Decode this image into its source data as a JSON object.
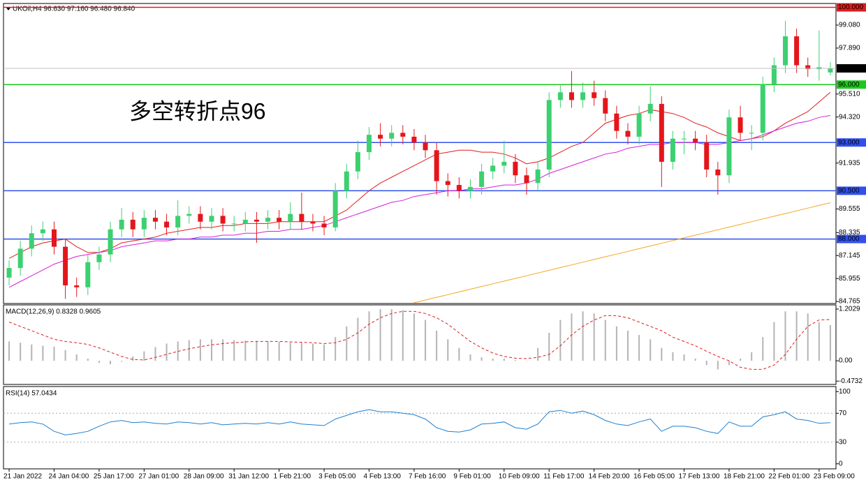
{
  "chart_data": [
    {
      "type": "candlestick",
      "title": "UKOil,H4  96.630 97.160 96.480 96.840",
      "annotation": "多空转折点96",
      "annotation_color": "#e8101a",
      "up_color": "#3cd070",
      "down_color": "#e4161b",
      "categories": [
        "21 Jan 2022",
        null,
        null,
        null,
        "24 Jan 04:00",
        null,
        null,
        null,
        "25 Jan 17:00",
        null,
        null,
        null,
        "27 Jan 01:00",
        null,
        null,
        null,
        "28 Jan 09:00",
        null,
        null,
        null,
        "31 Jan 12:00",
        null,
        null,
        null,
        "1 Feb 21:00",
        null,
        null,
        null,
        "3 Feb 05:00",
        null,
        null,
        null,
        "4 Feb 13:00",
        null,
        null,
        null,
        "7 Feb 16:00",
        null,
        null,
        null,
        "9 Feb 01:00",
        null,
        null,
        null,
        "10 Feb 09:00",
        null,
        null,
        null,
        "11 Feb 17:00",
        null,
        null,
        null,
        "14 Feb 20:00",
        null,
        null,
        null,
        "16 Feb 05:00",
        null,
        null,
        null,
        "17 Feb 13:00",
        null,
        null,
        null,
        "18 Feb 21:00",
        null,
        null,
        null,
        "22 Feb 01:00",
        null,
        null,
        null,
        "23 Feb 09:00",
        null
      ],
      "open": [
        86.0,
        86.5,
        87.5,
        88.3,
        88.5,
        87.6,
        85.6,
        85.5,
        86.8,
        87.2,
        88.5,
        89.0,
        88.5,
        89.1,
        88.9,
        88.6,
        89.2,
        89.3,
        88.9,
        89.2,
        88.8,
        88.8,
        89.0,
        88.9,
        89.1,
        88.9,
        89.3,
        88.9,
        88.8,
        88.6,
        90.5,
        91.5,
        92.5,
        93.4,
        93.2,
        93.5,
        93.3,
        93.0,
        92.6,
        91.0,
        90.8,
        90.5,
        90.7,
        91.5,
        91.8,
        92.0,
        91.3,
        90.9,
        91.6,
        95.2,
        95.6,
        95.2,
        95.6,
        95.3,
        94.5,
        93.6,
        93.3,
        94.5,
        95.0,
        92.0,
        93.2,
        93.2,
        93.0,
        91.6,
        91.3,
        94.3,
        93.5,
        93.5,
        96.0,
        97.0,
        98.5,
        97.0,
        96.8,
        96.63
      ],
      "high": [
        86.9,
        87.9,
        88.7,
        88.9,
        88.9,
        88.0,
        86.0,
        87.2,
        87.6,
        88.9,
        89.6,
        89.4,
        89.5,
        89.5,
        89.3,
        90.0,
        89.7,
        89.7,
        89.6,
        89.6,
        89.2,
        89.4,
        89.4,
        89.5,
        89.5,
        89.9,
        90.4,
        89.3,
        89.2,
        90.9,
        91.9,
        93.1,
        93.8,
        94.0,
        93.9,
        93.9,
        93.7,
        93.4,
        93.0,
        91.4,
        91.2,
        91.1,
        91.9,
        92.2,
        93.1,
        92.4,
        91.7,
        92.0,
        95.6,
        96.0,
        96.7,
        96.1,
        96.2,
        95.7,
        94.9,
        94.0,
        94.9,
        95.9,
        95.4,
        93.6,
        93.6,
        93.6,
        93.4,
        92.0,
        94.7,
        94.9,
        93.9,
        96.4,
        97.4,
        99.3,
        98.9,
        97.4,
        98.8,
        97.16
      ],
      "low": [
        85.6,
        86.1,
        87.1,
        87.9,
        87.2,
        84.9,
        85.0,
        85.1,
        86.4,
        86.8,
        88.1,
        88.1,
        88.1,
        88.5,
        88.2,
        88.2,
        88.8,
        88.5,
        88.5,
        88.4,
        88.4,
        88.4,
        87.8,
        88.5,
        88.5,
        88.5,
        88.5,
        88.4,
        88.2,
        88.4,
        90.1,
        91.1,
        92.1,
        92.8,
        92.8,
        92.9,
        92.6,
        92.2,
        90.3,
        90.2,
        90.1,
        90.1,
        90.3,
        91.1,
        91.4,
        90.9,
        90.3,
        90.5,
        91.2,
        94.8,
        94.8,
        94.8,
        94.9,
        94.1,
        93.2,
        92.9,
        92.9,
        94.1,
        90.7,
        91.6,
        92.4,
        92.6,
        91.2,
        90.3,
        90.9,
        93.1,
        92.6,
        93.1,
        95.6,
        96.6,
        96.6,
        96.4,
        96.2,
        96.48
      ],
      "close": [
        86.5,
        87.5,
        88.3,
        88.5,
        87.6,
        85.6,
        85.5,
        86.8,
        87.2,
        88.5,
        89.0,
        88.5,
        89.1,
        88.9,
        88.6,
        89.2,
        89.3,
        88.9,
        89.2,
        88.8,
        88.8,
        89.0,
        88.9,
        89.1,
        88.9,
        89.3,
        88.9,
        88.8,
        88.6,
        90.5,
        91.5,
        92.5,
        93.4,
        93.2,
        93.5,
        93.3,
        93.0,
        92.6,
        91.0,
        90.8,
        90.5,
        90.7,
        91.5,
        91.8,
        92.0,
        91.3,
        90.9,
        91.6,
        95.2,
        95.6,
        95.2,
        95.6,
        95.3,
        94.5,
        93.6,
        93.3,
        94.5,
        95.0,
        92.0,
        93.2,
        93.2,
        93.0,
        91.6,
        91.3,
        94.3,
        93.5,
        93.5,
        96.0,
        97.0,
        98.5,
        97.0,
        96.8,
        96.9,
        96.84
      ],
      "series": [
        {
          "color": "#e01b1b",
          "values": [
            87.0,
            87.3,
            87.6,
            87.8,
            87.9,
            88.0,
            87.6,
            87.3,
            87.3,
            87.5,
            87.8,
            87.9,
            88.0,
            88.1,
            88.3,
            88.4,
            88.5,
            88.6,
            88.6,
            88.7,
            88.7,
            88.8,
            88.8,
            88.8,
            88.9,
            88.9,
            88.9,
            88.9,
            88.9,
            89.2,
            89.5,
            90.0,
            90.5,
            90.9,
            91.2,
            91.5,
            91.8,
            92.1,
            92.4,
            92.5,
            92.6,
            92.6,
            92.5,
            92.5,
            92.4,
            92.2,
            91.9,
            92.0,
            92.2,
            92.5,
            92.8,
            93.0,
            93.5,
            94.0,
            94.2,
            94.4,
            94.5,
            94.7,
            94.6,
            94.5,
            94.3,
            94.0,
            93.8,
            93.5,
            93.3,
            93.1,
            93.2,
            93.3,
            93.6,
            94.0,
            94.3,
            94.6,
            95.1,
            95.6
          ]
        },
        {
          "color": "#d81ed8",
          "values": [
            85.5,
            85.8,
            86.1,
            86.4,
            86.7,
            86.9,
            87.1,
            87.2,
            87.3,
            87.4,
            87.6,
            87.7,
            87.8,
            87.9,
            87.9,
            88.0,
            88.0,
            88.1,
            88.1,
            88.2,
            88.2,
            88.3,
            88.3,
            88.4,
            88.4,
            88.5,
            88.5,
            88.6,
            88.7,
            88.9,
            89.1,
            89.3,
            89.5,
            89.7,
            89.9,
            90.0,
            90.2,
            90.3,
            90.4,
            90.5,
            90.5,
            90.6,
            90.6,
            90.7,
            90.8,
            90.8,
            90.9,
            91.1,
            91.4,
            91.6,
            91.8,
            92.0,
            92.2,
            92.4,
            92.5,
            92.7,
            92.8,
            92.9,
            92.9,
            93.0,
            93.0,
            93.0,
            92.9,
            92.9,
            93.0,
            93.1,
            93.2,
            93.4,
            93.6,
            93.8,
            94.0,
            94.1,
            94.3,
            94.4
          ]
        },
        {
          "color": "#f5a623",
          "values": [
            null,
            null,
            null,
            null,
            null,
            null,
            null,
            null,
            null,
            null,
            null,
            null,
            null,
            null,
            null,
            null,
            null,
            null,
            null,
            null,
            null,
            null,
            null,
            null,
            null,
            null,
            null,
            null,
            null,
            null,
            null,
            null,
            null,
            null,
            null,
            null,
            84.7,
            84.84,
            84.98,
            85.12,
            85.26,
            85.4,
            85.54,
            85.68,
            85.82,
            85.96,
            86.1,
            86.24,
            86.38,
            86.52,
            86.66,
            86.8,
            86.94,
            87.08,
            87.22,
            87.36,
            87.5,
            87.64,
            87.78,
            87.92,
            88.06,
            88.2,
            88.34,
            88.48,
            88.62,
            88.76,
            88.9,
            89.04,
            89.18,
            89.32,
            89.46,
            89.6,
            89.74,
            89.88
          ]
        }
      ],
      "levels": [
        {
          "value": 100.0,
          "label": "100.000",
          "color": "#e01b1b"
        },
        {
          "value": 96.0,
          "label": "96.000",
          "color": "#1ec81e"
        },
        {
          "value": 93.0,
          "label": "93.000",
          "color": "#3050ee"
        },
        {
          "value": 90.5,
          "label": "90.500",
          "color": "#3050ee"
        },
        {
          "value": 88.0,
          "label": "88.000",
          "color": "#3050ee"
        }
      ],
      "last": {
        "value": 96.84,
        "label": "96.840",
        "color": "#c0c0c0"
      },
      "ylim": [
        84.66,
        100.2
      ],
      "yticks": [
        {
          "value": 99.08,
          "label": "99.080"
        },
        {
          "value": 97.89,
          "label": "97.890"
        },
        {
          "value": 95.51,
          "label": "95.510"
        },
        {
          "value": 94.32,
          "label": "94.320"
        },
        {
          "value": 91.935,
          "label": "91.935"
        },
        {
          "value": 89.555,
          "label": "89.555"
        },
        {
          "value": 88.335,
          "label": "88.335"
        },
        {
          "value": 87.145,
          "label": "87.145"
        },
        {
          "value": 85.955,
          "label": "85.955"
        },
        {
          "value": 84.765,
          "label": "84.765"
        }
      ]
    },
    {
      "type": "macd",
      "title": "MACD(12,26,9) 0.8328 0.9605",
      "histogram": {
        "color": "#b4b4b4",
        "values": [
          0.45,
          0.42,
          0.38,
          0.35,
          0.33,
          0.25,
          0.15,
          0.05,
          -0.05,
          -0.08,
          -0.02,
          0.1,
          0.22,
          0.32,
          0.4,
          0.45,
          0.48,
          0.5,
          0.5,
          0.5,
          0.48,
          0.47,
          0.46,
          0.45,
          0.44,
          0.42,
          0.42,
          0.4,
          0.38,
          0.55,
          0.8,
          1.0,
          1.15,
          1.2,
          1.2,
          1.18,
          1.1,
          0.95,
          0.7,
          0.5,
          0.3,
          0.15,
          0.08,
          0.05,
          0.05,
          0.02,
          0.0,
          0.3,
          0.65,
          0.95,
          1.1,
          1.15,
          1.1,
          0.95,
          0.8,
          0.7,
          0.6,
          0.5,
          0.3,
          0.2,
          0.15,
          0.05,
          -0.1,
          -0.2,
          -0.1,
          0.05,
          0.2,
          0.55,
          0.9,
          1.15,
          1.15,
          1.1,
          0.9,
          0.8328
        ]
      },
      "signal": {
        "color": "#e01b1b",
        "values": [
          0.9,
          0.8,
          0.7,
          0.6,
          0.5,
          0.45,
          0.42,
          0.38,
          0.3,
          0.2,
          0.1,
          0.03,
          0.02,
          0.08,
          0.15,
          0.22,
          0.28,
          0.33,
          0.37,
          0.4,
          0.42,
          0.44,
          0.45,
          0.45,
          0.45,
          0.44,
          0.43,
          0.42,
          0.4,
          0.42,
          0.5,
          0.65,
          0.85,
          1.0,
          1.1,
          1.15,
          1.15,
          1.1,
          1.0,
          0.85,
          0.65,
          0.45,
          0.3,
          0.18,
          0.1,
          0.06,
          0.05,
          0.08,
          0.15,
          0.35,
          0.6,
          0.8,
          0.95,
          1.05,
          1.05,
          1.0,
          0.9,
          0.8,
          0.7,
          0.55,
          0.45,
          0.35,
          0.22,
          0.1,
          0.0,
          -0.15,
          -0.2,
          -0.2,
          -0.1,
          0.15,
          0.5,
          0.8,
          0.95,
          0.9605
        ]
      },
      "ylim": [
        -0.55,
        1.3
      ],
      "yticks": [
        1.2029,
        {
          "value": 0,
          "label": "0.00"
        },
        -0.4732
      ]
    },
    {
      "type": "line",
      "title": "RSI(14) 57.0434",
      "color": "#1e7fd0",
      "values": [
        55,
        57,
        58,
        55,
        45,
        40,
        42,
        45,
        52,
        58,
        60,
        57,
        58,
        56,
        55,
        58,
        57,
        55,
        57,
        54,
        55,
        56,
        55,
        57,
        55,
        58,
        55,
        54,
        53,
        62,
        67,
        72,
        75,
        72,
        72,
        70,
        68,
        62,
        50,
        45,
        44,
        47,
        55,
        56,
        58,
        50,
        48,
        55,
        72,
        74,
        70,
        73,
        68,
        60,
        55,
        53,
        58,
        62,
        45,
        52,
        52,
        50,
        45,
        42,
        58,
        52,
        52,
        65,
        68,
        72,
        62,
        60,
        56,
        57.0434
      ],
      "levels": [
        {
          "value": 70
        },
        {
          "value": 30
        }
      ],
      "ylim": [
        -7,
        107
      ],
      "yticks": [
        100,
        70,
        30,
        0
      ]
    }
  ]
}
